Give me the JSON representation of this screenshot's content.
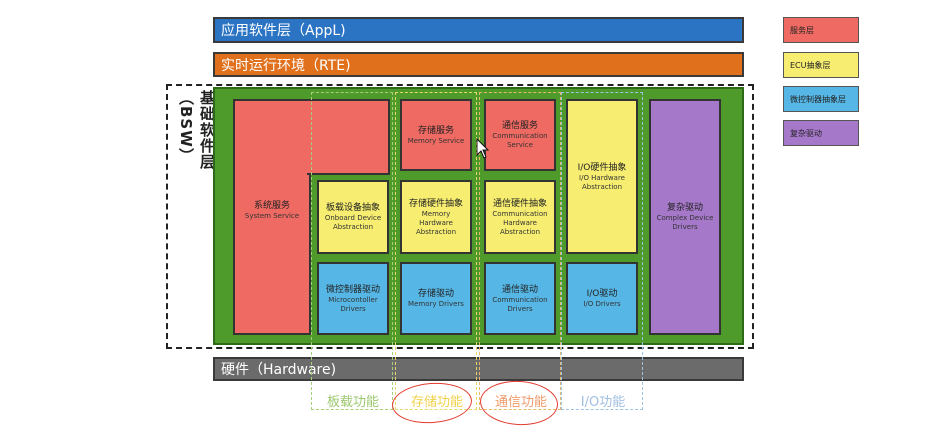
{
  "layers": {
    "appl": "应用软件层（AppL)",
    "rte": "实时运行环境（RTE)",
    "hardware": "硬件（Hardware)"
  },
  "bsw": {
    "label": "基础软件层（BSW）"
  },
  "blocks": {
    "system_service": {
      "zh": "系统服务",
      "en": "System Service"
    },
    "memory_service": {
      "zh": "存储服务",
      "en": "Memory Service"
    },
    "communication_service": {
      "zh": "通信服务",
      "en": "Communication Service"
    },
    "onboard_device_abstraction": {
      "zh": "板载设备抽象",
      "en": "Onboard Device Abstraction"
    },
    "memory_hardware_abstraction": {
      "zh": "存储硬件抽象",
      "en": "Memory Hardware Abstraction"
    },
    "communication_hardware_abstraction": {
      "zh": "通信硬件抽象",
      "en": "Communication Hardware Abstraction"
    },
    "io_hardware_abstraction": {
      "zh": "I/O硬件抽象",
      "en": "I/O Hardware Abstraction"
    },
    "complex_device_drivers": {
      "zh": "复杂驱动",
      "en": "Complex Device Drivers"
    },
    "microcontroller_drivers": {
      "zh": "微控制器驱动",
      "en": "Microcontoller Drivers"
    },
    "memory_drivers": {
      "zh": "存储驱动",
      "en": "Memory Drivers"
    },
    "communication_drivers": {
      "zh": "通信驱动",
      "en": "Communication Drivers"
    },
    "io_drivers": {
      "zh": "I/O驱动",
      "en": "I/O Drivers"
    }
  },
  "columns": {
    "onboard": "板载功能",
    "memory": "存储功能",
    "communication": "通信功能",
    "io": "I/O功能"
  },
  "legend": [
    {
      "label": "服务层",
      "color": "#ef6a63"
    },
    {
      "label": "ECU抽象层",
      "color": "#f7ee71"
    },
    {
      "label": "微控制器抽象层",
      "color": "#56b7e6"
    },
    {
      "label": "复杂驱动",
      "color": "#a678c9"
    }
  ],
  "colors": {
    "appl": "#2b74c4",
    "rte": "#e0701c",
    "hardware": "#6b6b6b",
    "bsw_background": "#4e9a2b",
    "annotation": "#e23b2e"
  }
}
